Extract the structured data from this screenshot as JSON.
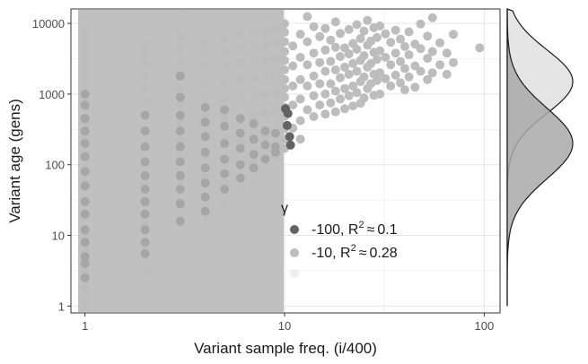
{
  "chart_data": {
    "type": "scatter",
    "xlabel": "Variant sample freq. (i/400)",
    "ylabel": "Variant age (gens)",
    "x_scale": "log10",
    "y_scale": "log10",
    "xlim": [
      0.85,
      120
    ],
    "ylim": [
      0.8,
      16000
    ],
    "x_ticks": [
      1,
      10,
      100
    ],
    "x_tick_labels": [
      "1",
      "10",
      "100"
    ],
    "y_ticks": [
      1,
      10,
      100,
      1000,
      10000
    ],
    "y_tick_labels": [
      "1",
      "10",
      "100",
      "1000",
      "10000"
    ],
    "grid": true,
    "shaded_region": {
      "x_from": 0.85,
      "x_to": 9.5,
      "color": "#bdbdbd"
    },
    "legend": {
      "title": "γ",
      "placement": "inside-bottom-center",
      "entries": [
        {
          "label": "-100, R",
          "sup": "2",
          "approx": "≈",
          "r2": "0.1",
          "color": "#636363"
        },
        {
          "label": "-10, R",
          "sup": "2",
          "approx": "≈",
          "r2": "0.28",
          "color": "#bdbdbd"
        },
        {
          "label": "",
          "color": "#f0f0f0"
        }
      ]
    },
    "series": [
      {
        "color": "#636363",
        "points": [
          [
            10.1,
            620
          ],
          [
            10.4,
            530
          ],
          [
            10.3,
            360
          ],
          [
            10.6,
            250
          ],
          [
            10.7,
            190
          ]
        ]
      },
      {
        "color": "#bdbdbd",
        "points": [
          [
            10,
            9900
          ],
          [
            10,
            7500
          ],
          [
            10,
            5500
          ],
          [
            10,
            4000
          ],
          [
            10,
            3000
          ],
          [
            10,
            2200
          ],
          [
            10,
            1600
          ],
          [
            10,
            1200
          ],
          [
            10,
            900
          ],
          [
            10,
            650
          ],
          [
            10,
            480
          ],
          [
            10,
            320
          ],
          [
            10,
            230
          ],
          [
            10,
            170
          ],
          [
            11,
            4800
          ],
          [
            11,
            2500
          ],
          [
            11,
            1300
          ],
          [
            11,
            700
          ],
          [
            11,
            330
          ],
          [
            12,
            7000
          ],
          [
            12,
            3300
          ],
          [
            12,
            1600
          ],
          [
            12,
            850
          ],
          [
            12,
            420
          ],
          [
            12,
            230
          ],
          [
            13,
            12500
          ],
          [
            13,
            5500
          ],
          [
            13,
            2600
          ],
          [
            13,
            1300
          ],
          [
            13,
            600
          ],
          [
            14,
            9000
          ],
          [
            14,
            3800
          ],
          [
            14,
            1800
          ],
          [
            14,
            950
          ],
          [
            14,
            480
          ],
          [
            15,
            6500
          ],
          [
            15,
            2800
          ],
          [
            15,
            1400
          ],
          [
            15,
            700
          ],
          [
            16,
            8500
          ],
          [
            16,
            4200
          ],
          [
            16,
            2100
          ],
          [
            16,
            1000
          ],
          [
            16,
            520
          ],
          [
            17,
            5800
          ],
          [
            17,
            2900
          ],
          [
            17,
            1400
          ],
          [
            17,
            750
          ],
          [
            18,
            10500
          ],
          [
            18,
            4600
          ],
          [
            18,
            2200
          ],
          [
            18,
            1100
          ],
          [
            18,
            560
          ],
          [
            19,
            7200
          ],
          [
            19,
            3400
          ],
          [
            19,
            1700
          ],
          [
            19,
            850
          ],
          [
            20,
            4500
          ],
          [
            20,
            2400
          ],
          [
            20,
            1200
          ],
          [
            20,
            620
          ],
          [
            21,
            8200
          ],
          [
            21,
            3700
          ],
          [
            21,
            1900
          ],
          [
            21,
            950
          ],
          [
            22,
            5200
          ],
          [
            22,
            2700
          ],
          [
            22,
            1300
          ],
          [
            22,
            680
          ],
          [
            23,
            9600
          ],
          [
            23,
            4300
          ],
          [
            23,
            2100
          ],
          [
            23,
            1050
          ],
          [
            24,
            6100
          ],
          [
            24,
            3000
          ],
          [
            24,
            1500
          ],
          [
            24,
            740
          ],
          [
            25,
            7800
          ],
          [
            25,
            3500
          ],
          [
            25,
            1750
          ],
          [
            25,
            880
          ],
          [
            26,
            11000
          ],
          [
            26,
            4900
          ],
          [
            26,
            2400
          ],
          [
            26,
            1200
          ],
          [
            27,
            5600
          ],
          [
            27,
            2700
          ],
          [
            27,
            1400
          ],
          [
            28,
            8700
          ],
          [
            28,
            3900
          ],
          [
            28,
            1900
          ],
          [
            28,
            960
          ],
          [
            29,
            6300
          ],
          [
            29,
            3100
          ],
          [
            29,
            1550
          ],
          [
            30,
            9200
          ],
          [
            30,
            4100
          ],
          [
            30,
            2000
          ],
          [
            30,
            1000
          ],
          [
            32,
            7100
          ],
          [
            32,
            3300
          ],
          [
            32,
            1650
          ],
          [
            34,
            5400
          ],
          [
            34,
            2600
          ],
          [
            34,
            1300
          ],
          [
            36,
            8000
          ],
          [
            36,
            3800
          ],
          [
            36,
            1850
          ],
          [
            38,
            6000
          ],
          [
            38,
            2900
          ],
          [
            38,
            1450
          ],
          [
            40,
            4700
          ],
          [
            40,
            2300
          ],
          [
            40,
            1150
          ],
          [
            42,
            7600
          ],
          [
            42,
            3600
          ],
          [
            42,
            1750
          ],
          [
            45,
            5100
          ],
          [
            45,
            2500
          ],
          [
            45,
            1250
          ],
          [
            48,
            9800
          ],
          [
            48,
            4400
          ],
          [
            48,
            2100
          ],
          [
            52,
            6600
          ],
          [
            52,
            3200
          ],
          [
            52,
            1600
          ],
          [
            55,
            12000
          ],
          [
            55,
            4000
          ],
          [
            55,
            2000
          ],
          [
            60,
            5300
          ],
          [
            60,
            2600
          ],
          [
            65,
            3800
          ],
          [
            65,
            1900
          ],
          [
            70,
            7000
          ],
          [
            70,
            2800
          ],
          [
            95,
            4500
          ],
          [
            1,
            8000
          ],
          [
            1,
            6500
          ],
          [
            1,
            5000
          ],
          [
            1,
            4000
          ],
          [
            1,
            3200
          ],
          [
            1,
            2500
          ],
          [
            1,
            1800
          ],
          [
            1,
            1300
          ],
          [
            1,
            900
          ],
          [
            1,
            650
          ],
          [
            1,
            400
          ],
          [
            1,
            250
          ],
          [
            1,
            150
          ],
          [
            1,
            90
          ],
          [
            1,
            55
          ],
          [
            1,
            30
          ],
          [
            1,
            18
          ],
          [
            1,
            10
          ],
          [
            1,
            6
          ],
          [
            1,
            3
          ],
          [
            1,
            1.8
          ],
          [
            1,
            1
          ],
          [
            2,
            5000
          ],
          [
            2,
            3800
          ],
          [
            2,
            2700
          ],
          [
            2,
            1800
          ],
          [
            2,
            1200
          ],
          [
            2,
            800
          ],
          [
            2,
            500
          ],
          [
            2,
            300
          ],
          [
            2,
            180
          ],
          [
            2,
            100
          ],
          [
            2,
            55
          ],
          [
            2,
            28
          ],
          [
            2,
            14
          ],
          [
            2,
            7
          ],
          [
            2,
            3
          ],
          [
            3,
            6500
          ],
          [
            3,
            4500
          ],
          [
            3,
            3000
          ],
          [
            3,
            1900
          ],
          [
            3,
            1200
          ],
          [
            3,
            700
          ],
          [
            3,
            400
          ],
          [
            3,
            220
          ],
          [
            3,
            120
          ],
          [
            3,
            60
          ],
          [
            3,
            30
          ],
          [
            3,
            15
          ],
          [
            4,
            5500
          ],
          [
            4,
            3800
          ],
          [
            4,
            2500
          ],
          [
            4,
            1500
          ],
          [
            4,
            900
          ],
          [
            4,
            500
          ],
          [
            4,
            260
          ],
          [
            4,
            130
          ],
          [
            4,
            65
          ],
          [
            4,
            35
          ],
          [
            4,
            18
          ],
          [
            5,
            6000
          ],
          [
            5,
            4000
          ],
          [
            5,
            2500
          ],
          [
            5,
            1500
          ],
          [
            5,
            850
          ],
          [
            5,
            450
          ],
          [
            5,
            230
          ],
          [
            5,
            110
          ],
          [
            5,
            55
          ],
          [
            5,
            28
          ],
          [
            6,
            7000
          ],
          [
            6,
            4500
          ],
          [
            6,
            2800
          ],
          [
            6,
            1600
          ],
          [
            6,
            900
          ],
          [
            6,
            450
          ],
          [
            6,
            220
          ],
          [
            6,
            100
          ],
          [
            6,
            45
          ],
          [
            7,
            7500
          ],
          [
            7,
            4800
          ],
          [
            7,
            3000
          ],
          [
            7,
            1700
          ],
          [
            7,
            950
          ],
          [
            7,
            480
          ],
          [
            7,
            230
          ],
          [
            7,
            110
          ],
          [
            7,
            55
          ],
          [
            8,
            8000
          ],
          [
            8,
            5000
          ],
          [
            8,
            3100
          ],
          [
            8,
            1800
          ],
          [
            8,
            1000
          ],
          [
            8,
            520
          ],
          [
            8,
            250
          ],
          [
            8,
            120
          ],
          [
            9,
            8500
          ],
          [
            9,
            5200
          ],
          [
            9,
            3200
          ],
          [
            9,
            1900
          ],
          [
            9,
            1050
          ],
          [
            9,
            560
          ],
          [
            9,
            270
          ],
          [
            9,
            130
          ]
        ]
      },
      {
        "color": "#a6a6a6",
        "points": [
          [
            1,
            1000
          ],
          [
            1,
            700
          ],
          [
            1,
            450
          ],
          [
            1,
            300
          ],
          [
            1,
            200
          ],
          [
            1,
            130
          ],
          [
            1,
            80
          ],
          [
            1,
            50
          ],
          [
            1,
            30
          ],
          [
            1,
            20
          ],
          [
            1,
            12
          ],
          [
            1,
            8
          ],
          [
            1,
            5
          ],
          [
            1,
            4
          ],
          [
            1,
            2.5
          ],
          [
            2,
            500
          ],
          [
            2,
            300
          ],
          [
            2,
            180
          ],
          [
            2,
            110
          ],
          [
            2,
            70
          ],
          [
            2,
            45
          ],
          [
            2,
            30
          ],
          [
            2,
            20
          ],
          [
            2,
            12
          ],
          [
            2,
            8
          ],
          [
            2,
            5.5
          ],
          [
            3,
            1800
          ],
          [
            3,
            900
          ],
          [
            3,
            500
          ],
          [
            3,
            300
          ],
          [
            3,
            180
          ],
          [
            3,
            110
          ],
          [
            3,
            70
          ],
          [
            3,
            45
          ],
          [
            3,
            28
          ],
          [
            3,
            16
          ],
          [
            4,
            650
          ],
          [
            4,
            400
          ],
          [
            4,
            250
          ],
          [
            4,
            150
          ],
          [
            4,
            90
          ],
          [
            4,
            55
          ],
          [
            4,
            35
          ],
          [
            4,
            22
          ],
          [
            5,
            600
          ],
          [
            5,
            350
          ],
          [
            5,
            200
          ],
          [
            5,
            120
          ],
          [
            5,
            75
          ],
          [
            5,
            45
          ],
          [
            6,
            450
          ],
          [
            6,
            280
          ],
          [
            6,
            170
          ],
          [
            6,
            100
          ],
          [
            6,
            65
          ],
          [
            7,
            380
          ],
          [
            7,
            230
          ],
          [
            7,
            140
          ],
          [
            7,
            90
          ],
          [
            8,
            300
          ],
          [
            8,
            190
          ],
          [
            8,
            120
          ],
          [
            9,
            280
          ],
          [
            9,
            180
          ],
          [
            9,
            150
          ]
        ]
      }
    ],
    "marginal_density": {
      "curves": [
        {
          "color": "#e0e0e0",
          "mode_y": 1500,
          "spread": 0.45
        },
        {
          "color": "#a9a9a9",
          "mode_y": 200,
          "spread": 0.5
        }
      ]
    }
  }
}
